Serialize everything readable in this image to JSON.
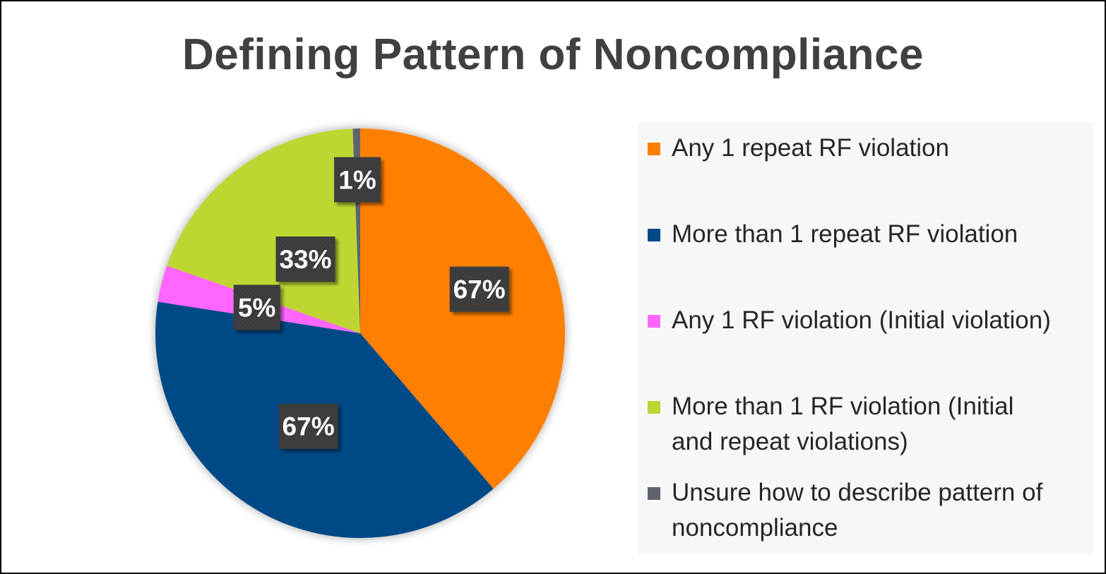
{
  "chart_data": {
    "type": "pie",
    "title": "Defining Pattern of Noncompliance",
    "slices": [
      {
        "name": "Any 1 repeat RF violation",
        "value": 67,
        "label": "67%",
        "color": "#ff8000"
      },
      {
        "name": "More than 1 repeat RF violation",
        "value": 67,
        "label": "67%",
        "color": "#004a87"
      },
      {
        "name": "Any 1 RF violation (Initial violation)",
        "value": 5,
        "label": "5%",
        "color": "#ff66ff"
      },
      {
        "name": "More than 1 RF violation (Initial and repeat violations)",
        "value": 33,
        "label": "33%",
        "color": "#bfd630"
      },
      {
        "name": "Unsure how to describe pattern of noncompliance",
        "value": 1,
        "label": "1%",
        "color": "#5f6370"
      }
    ],
    "legend_position": "right",
    "label_style": {
      "background": "#3a3a3a",
      "text_color": "#ffffff"
    }
  }
}
